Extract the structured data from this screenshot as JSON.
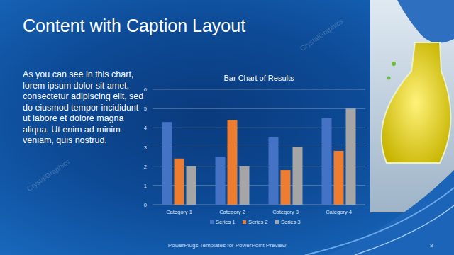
{
  "slide": {
    "title": "Content with Caption Layout",
    "caption": "As you can see in this chart, lorem ipsum dolor sit amet, consectetur adipiscing elit, sed do eiusmod tempor incididunt ut labore et dolore magna aliqua. Ut enim ad minim veniam, quis nostrud.",
    "footer": "PowerPlugs Templates for PowerPoint Preview",
    "page_number": "8",
    "watermark": "CrystalGraphics"
  },
  "chart_data": {
    "type": "bar",
    "title": "Bar Chart of Results",
    "categories": [
      "Category 1",
      "Category 2",
      "Category 3",
      "Category 4"
    ],
    "series": [
      {
        "name": "Series 1",
        "color": "#4472c4",
        "values": [
          4.3,
          2.5,
          3.5,
          4.5
        ]
      },
      {
        "name": "Series 2",
        "color": "#ed7d31",
        "values": [
          2.4,
          4.4,
          1.8,
          2.8
        ]
      },
      {
        "name": "Series 3",
        "color": "#a5a5a5",
        "values": [
          2,
          2,
          3,
          5
        ]
      }
    ],
    "ylim": [
      0,
      6
    ],
    "yticks": [
      0,
      1,
      2,
      3,
      4,
      5,
      6
    ],
    "grid": true,
    "legend": "bottom"
  }
}
